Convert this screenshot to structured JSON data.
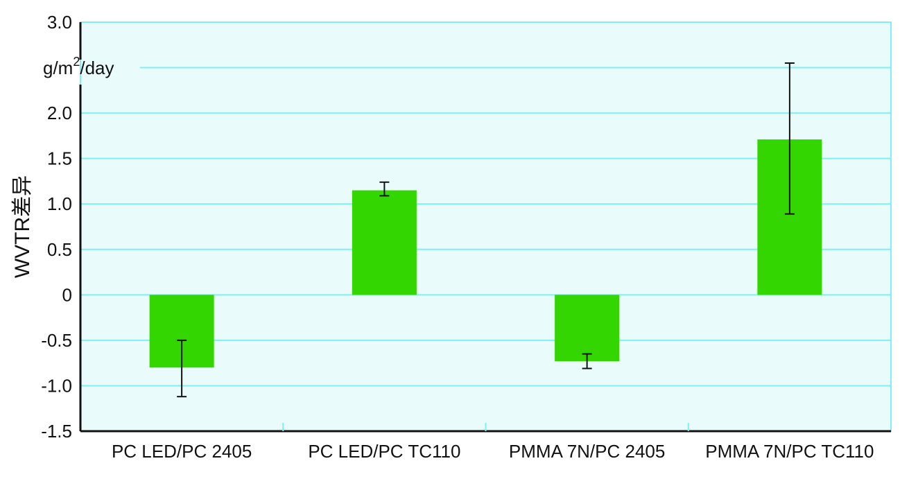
{
  "chart_data": {
    "type": "bar",
    "title": "",
    "xlabel": "",
    "ylabel": "WVTR差异",
    "unit": {
      "base": "g/m",
      "sup": "2",
      "tail": "/day"
    },
    "categories": [
      "PC LED/PC 2405",
      "PC LED/PC TC110",
      "PMMA 7N/PC 2405",
      "PMMA 7N/PC TC110"
    ],
    "values": [
      -0.8,
      1.15,
      -0.73,
      1.71
    ],
    "error_bars": [
      {
        "low": -1.12,
        "high": -0.5
      },
      {
        "low": 1.09,
        "high": 1.24
      },
      {
        "low": -0.81,
        "high": -0.65
      },
      {
        "low": 0.89,
        "high": 2.55
      }
    ],
    "ylim": [
      -1.5,
      3.0
    ],
    "yticks": [
      -1.5,
      -1.0,
      -0.5,
      0,
      0.5,
      1.0,
      1.5,
      2.0,
      2.5,
      3.0
    ],
    "ytick_labels": [
      "-1.5",
      "-1.0",
      "-0.5",
      "0",
      "0.5",
      "1.0",
      "1.5",
      "2.0",
      "",
      "3.0"
    ],
    "grid": true,
    "colors": {
      "bar": "#33d600",
      "plot_bg": "#eafbfb",
      "grid": "#7ff0f2",
      "axis": "#111111"
    }
  }
}
